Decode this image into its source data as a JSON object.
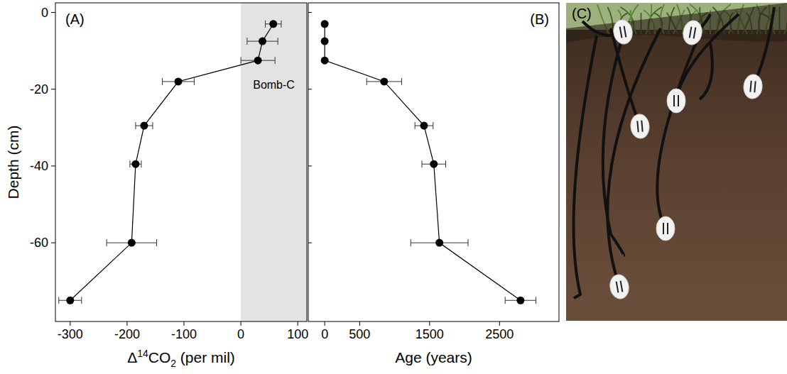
{
  "chart_data": [
    {
      "type": "scatter",
      "panel_label": "(A)",
      "x_label": "Δ14CO2 (per mil)",
      "y_label": "Depth (cm)",
      "x": [
        57,
        38,
        30,
        -110,
        -170,
        -185,
        -192,
        -300
      ],
      "x_error": [
        14,
        27,
        30,
        28,
        15,
        10,
        44,
        20
      ],
      "y": [
        -3,
        -7.5,
        -12.5,
        -18,
        -29.5,
        -39.5,
        -60,
        -75
      ],
      "xlim": [
        -326,
        116
      ],
      "xticks": [
        -300,
        -200,
        -100,
        0,
        100
      ],
      "ylim": [
        -80.5,
        2.5
      ],
      "yticks": [
        -60,
        -40,
        -20,
        0
      ],
      "shaded_x": [
        0,
        116
      ],
      "annotation": "Bomb-C",
      "color": "#000000",
      "marker": "circle",
      "line_style": "solid",
      "tick_labels": true
    },
    {
      "type": "scatter",
      "panel_label": "(B)",
      "x_label": "Age (years)",
      "x": [
        0,
        0,
        0,
        850,
        1420,
        1560,
        1640,
        2800
      ],
      "x_error": [
        0,
        0,
        0,
        250,
        130,
        170,
        410,
        220
      ],
      "y": [
        -3,
        -7.5,
        -12.5,
        -18,
        -29.5,
        -39.5,
        -60,
        -75
      ],
      "xlim": [
        -235,
        3350
      ],
      "xticks": [
        0,
        500,
        1500,
        2500
      ],
      "ylim": [
        -80.5,
        2.5
      ],
      "yticks": [
        -60,
        -40,
        -20,
        0
      ],
      "color": "#000000",
      "marker": "circle",
      "line_style": "solid",
      "tick_labels": "x"
    }
  ],
  "photo": {
    "label": "(C)"
  }
}
